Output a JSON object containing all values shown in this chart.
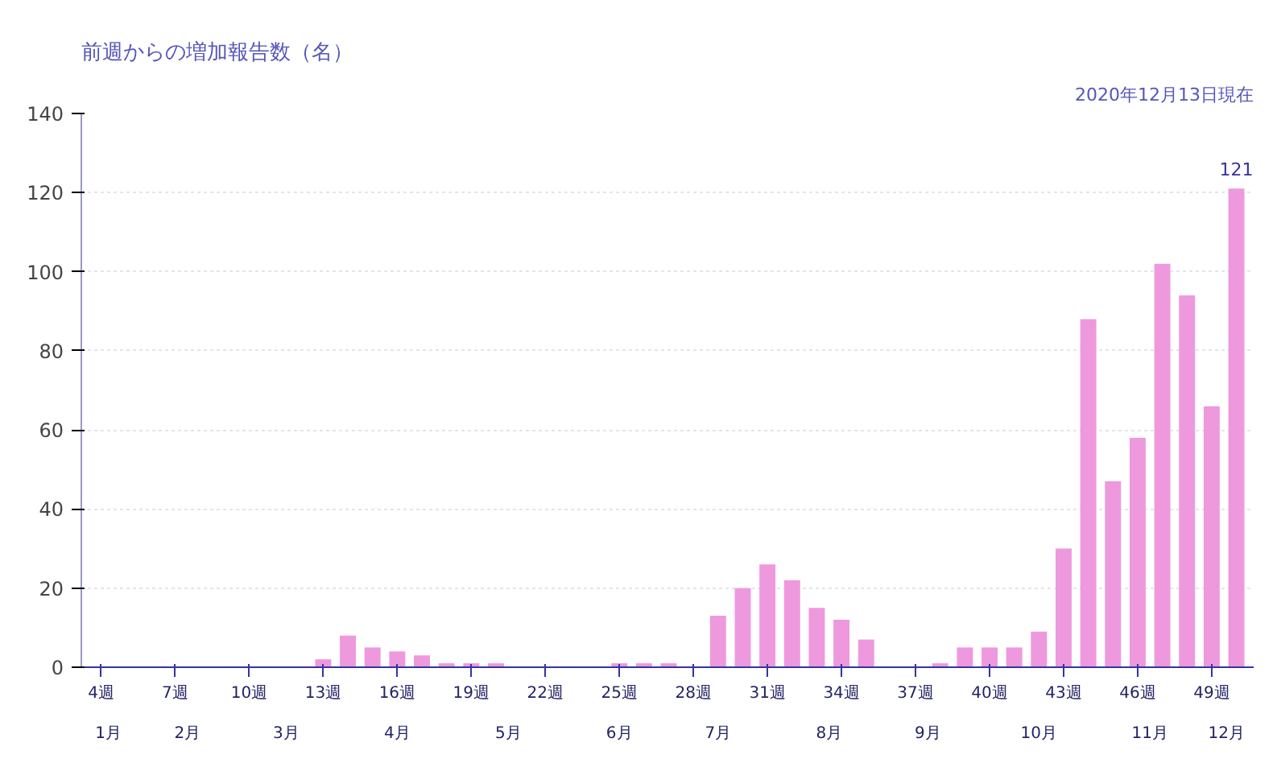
{
  "chart_data": {
    "type": "bar",
    "title": "前週からの増加報告数（名）",
    "annotations": [
      "2020年12月13日現在",
      "1月",
      "2月",
      "3月",
      "4月",
      "5月",
      "6月",
      "7月",
      "8月",
      "9月",
      "10月",
      "11月",
      "12月"
    ],
    "categories": [
      "4週",
      null,
      null,
      "7週",
      null,
      null,
      "10週",
      null,
      null,
      "13週",
      null,
      null,
      "16週",
      null,
      null,
      "19週",
      null,
      null,
      "22週",
      null,
      null,
      "25週",
      null,
      null,
      "28週",
      null,
      null,
      "31週",
      null,
      null,
      "34週",
      null,
      null,
      "37週",
      null,
      null,
      "40週",
      null,
      null,
      "43週",
      null,
      null,
      "46週",
      null,
      null,
      "49週",
      null
    ],
    "values": [
      0,
      0,
      0,
      0,
      0,
      0,
      0,
      0,
      0,
      2,
      8,
      5,
      4,
      3,
      1,
      1,
      1,
      0,
      0,
      0,
      0,
      1,
      1,
      1,
      0,
      13,
      20,
      26,
      22,
      15,
      12,
      7,
      0,
      0,
      1,
      5,
      5,
      5,
      9,
      30,
      88,
      47,
      58,
      102,
      94,
      66,
      121
    ],
    "value_labels": [
      null,
      null,
      null,
      null,
      null,
      null,
      null,
      null,
      null,
      null,
      null,
      null,
      null,
      null,
      null,
      null,
      null,
      null,
      null,
      null,
      null,
      null,
      null,
      null,
      null,
      null,
      null,
      null,
      null,
      null,
      null,
      null,
      null,
      null,
      null,
      null,
      null,
      null,
      null,
      null,
      null,
      null,
      null,
      null,
      null,
      null,
      "121"
    ],
    "color": "#ee99dd",
    "ylim": [
      0,
      140
    ],
    "yticks": [
      0,
      20,
      40,
      60,
      80,
      100,
      120,
      140
    ],
    "grid": "y"
  }
}
